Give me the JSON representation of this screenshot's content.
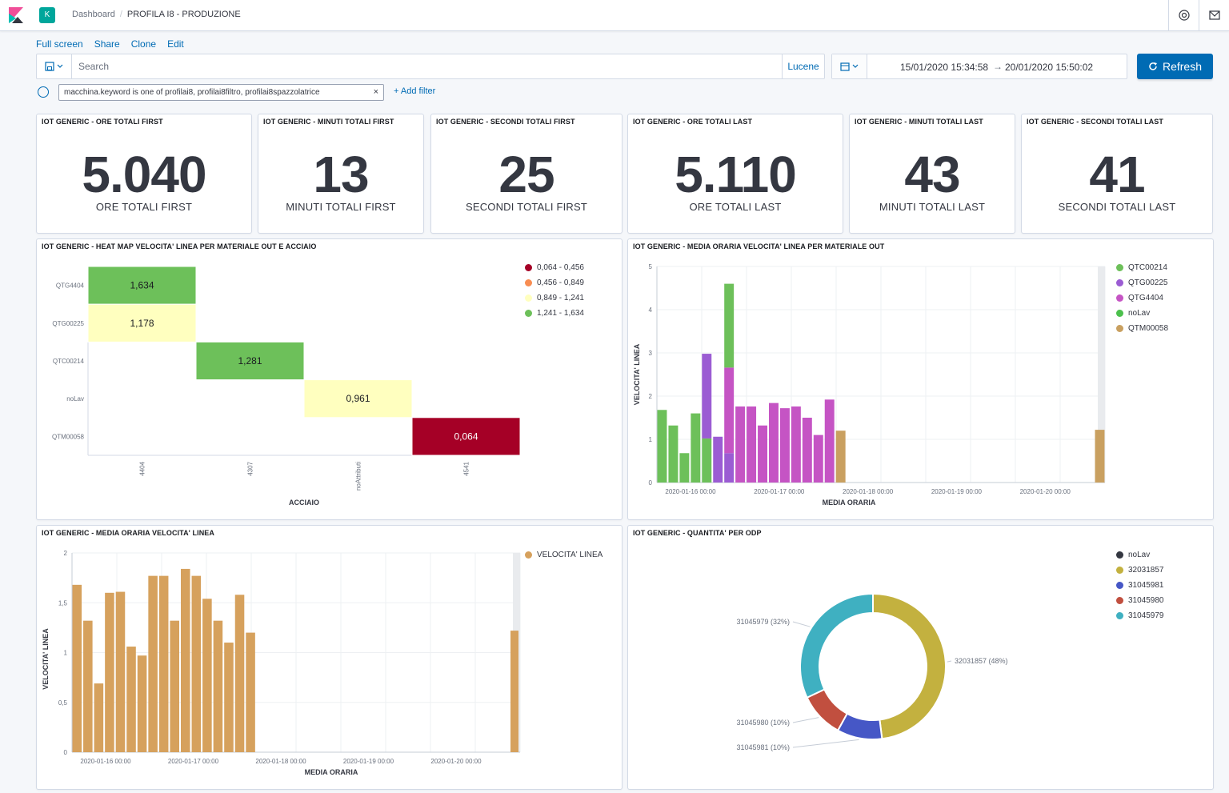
{
  "app": {
    "breadcrumb_root": "Dashboard",
    "breadcrumb_current": "PROFILA I8 - PRODUZIONE",
    "space_initial": "K"
  },
  "menu": {
    "fullscreen": "Full screen",
    "share": "Share",
    "clone": "Clone",
    "edit": "Edit"
  },
  "query": {
    "placeholder": "Search",
    "language": "Lucene"
  },
  "time": {
    "start": "15/01/2020 15:34:58",
    "arrow": "→",
    "end": "20/01/2020 15:50:02",
    "refresh_label": "Refresh"
  },
  "filters": {
    "pill": "macchina.keyword is one of profilai8, profilai8filtro, profilai8spazzolatrice",
    "remove": "×",
    "add_label": "+ Add filter"
  },
  "metrics": [
    {
      "title": "IOT GENERIC - ORE TOTALI FIRST",
      "value": "5.040",
      "label": "ORE TOTALI FIRST"
    },
    {
      "title": "IOT GENERIC - MINUTI TOTALI FIRST",
      "value": "13",
      "label": "MINUTI TOTALI FIRST"
    },
    {
      "title": "IOT GENERIC - SECONDI TOTALI FIRST",
      "value": "25",
      "label": "SECONDI TOTALI FIRST"
    },
    {
      "title": "IOT GENERIC - ORE TOTALI LAST",
      "value": "5.110",
      "label": "ORE TOTALI LAST"
    },
    {
      "title": "IOT GENERIC - MINUTI TOTALI LAST",
      "value": "43",
      "label": "MINUTI TOTALI LAST"
    },
    {
      "title": "IOT GENERIC - SECONDI TOTALI LAST",
      "value": "41",
      "label": "SECONDI TOTALI LAST"
    }
  ],
  "heatmap": {
    "title": "IOT GENERIC - HEAT MAP VELOCITA' LINEA PER MATERIALE OUT E ACCIAIO",
    "xlabel": "ACCIAIO",
    "rows": [
      "QTG4404",
      "QTG00225",
      "QTC00214",
      "noLav",
      "QTM00058"
    ],
    "cols": [
      "4404",
      "4307",
      "noAttributi",
      "4541"
    ],
    "cells": [
      {
        "row": 0,
        "col": 0,
        "label": "1,634",
        "color": "#6dc05a"
      },
      {
        "row": 1,
        "col": 0,
        "label": "1,178",
        "color": "#ffffbf"
      },
      {
        "row": 2,
        "col": 1,
        "label": "1,281",
        "color": "#6dc05a"
      },
      {
        "row": 3,
        "col": 2,
        "label": "0,961",
        "color": "#ffffbf"
      },
      {
        "row": 4,
        "col": 3,
        "label": "0,064",
        "color": "#a50026"
      }
    ],
    "legend": [
      {
        "label": "0,064 - 0,456",
        "color": "#a50026"
      },
      {
        "label": "0,456 - 0,849",
        "color": "#f88d52"
      },
      {
        "label": "0,849 - 1,241",
        "color": "#ffffbf"
      },
      {
        "label": "1,241 - 1,634",
        "color": "#6dc05a"
      }
    ]
  },
  "chart_data": [
    {
      "type": "bar",
      "title": "IOT GENERIC - MEDIA ORARIA VELOCITA' LINEA PER MATERIALE OUT",
      "xlabel": "MEDIA ORARIA",
      "ylabel": "VELOCITA' LINEA",
      "ylim": [
        0,
        5
      ],
      "yticks": [
        "0",
        "1",
        "2",
        "3",
        "4",
        "5"
      ],
      "xticks": [
        "2020-01-16 00:00",
        "2020-01-17 00:00",
        "2020-01-18 00:00",
        "2020-01-19 00:00",
        "2020-01-20 00:00"
      ],
      "series": [
        {
          "name": "QTC00214",
          "color": "#54b399"
        },
        {
          "name": "QTG00225",
          "color": "#6092c0"
        },
        {
          "name": "QTG4404",
          "color": "#d36086"
        },
        {
          "name": "noLav",
          "color": "#9170b8"
        },
        {
          "name": "QTM00058",
          "color": "#ca8eae"
        }
      ],
      "legend": [
        {
          "label": "QTC00214",
          "color": "#6dc05a"
        },
        {
          "label": "QTG00225",
          "color": "#9b5cd3"
        },
        {
          "label": "QTG4404",
          "color": "#c554c4"
        },
        {
          "label": "noLav",
          "color": "#4cc04d"
        },
        {
          "label": "QTM00058",
          "color": "#c9a060"
        }
      ],
      "bars": [
        {
          "x": 0,
          "stack": [
            [
              1.68,
              "#6dc05a"
            ]
          ]
        },
        {
          "x": 1,
          "stack": [
            [
              1.32,
              "#6dc05a"
            ]
          ]
        },
        {
          "x": 2,
          "stack": [
            [
              0.68,
              "#6dc05a"
            ]
          ]
        },
        {
          "x": 3,
          "stack": [
            [
              1.6,
              "#6dc05a"
            ]
          ]
        },
        {
          "x": 4,
          "stack": [
            [
              1.02,
              "#6dc05a"
            ],
            [
              1.96,
              "#9b5cd3"
            ]
          ]
        },
        {
          "x": 5,
          "stack": [
            [
              1.06,
              "#9b5cd3"
            ]
          ]
        },
        {
          "x": 6,
          "stack": [
            [
              0.68,
              "#9b5cd3"
            ],
            [
              1.98,
              "#c554c4"
            ],
            [
              1.94,
              "#6dc05a"
            ]
          ]
        },
        {
          "x": 7,
          "stack": [
            [
              1.76,
              "#c554c4"
            ]
          ]
        },
        {
          "x": 8,
          "stack": [
            [
              1.76,
              "#c554c4"
            ]
          ]
        },
        {
          "x": 9,
          "stack": [
            [
              1.32,
              "#c554c4"
            ]
          ]
        },
        {
          "x": 10,
          "stack": [
            [
              1.84,
              "#c554c4"
            ]
          ]
        },
        {
          "x": 11,
          "stack": [
            [
              1.72,
              "#c554c4"
            ]
          ]
        },
        {
          "x": 12,
          "stack": [
            [
              1.76,
              "#c554c4"
            ]
          ]
        },
        {
          "x": 13,
          "stack": [
            [
              1.5,
              "#c554c4"
            ]
          ]
        },
        {
          "x": 14,
          "stack": [
            [
              1.1,
              "#c554c4"
            ]
          ]
        },
        {
          "x": 15,
          "stack": [
            [
              1.92,
              "#c554c4"
            ]
          ]
        },
        {
          "x": 16,
          "stack": [
            [
              1.2,
              "#c9a060"
            ]
          ]
        },
        {
          "x": 40,
          "stack": [
            [
              1.22,
              "#c9a060"
            ]
          ]
        }
      ]
    },
    {
      "type": "bar",
      "title": "IOT GENERIC - MEDIA ORARIA VELOCITA' LINEA",
      "xlabel": "MEDIA ORARIA",
      "ylabel": "VELOCITA' LINEA",
      "ylim": [
        0,
        2
      ],
      "yticks": [
        "0",
        "0,5",
        "1",
        "1,5",
        "2"
      ],
      "xticks": [
        "2020-01-16 00:00",
        "2020-01-17 00:00",
        "2020-01-18 00:00",
        "2020-01-19 00:00",
        "2020-01-20 00:00"
      ],
      "legend": [
        {
          "label": "VELOCITA' LINEA",
          "color": "#d6a15d"
        }
      ],
      "series": [
        {
          "name": "VELOCITA' LINEA",
          "color": "#d6a15d"
        }
      ],
      "values": [
        1.68,
        1.32,
        0.69,
        1.6,
        1.61,
        1.06,
        0.97,
        1.77,
        1.77,
        1.32,
        1.84,
        1.77,
        1.54,
        1.32,
        1.1,
        1.58,
        1.2
      ],
      "last_value": 1.22
    },
    {
      "type": "pie",
      "title": "IOT GENERIC - QUANTITA' PER ODP",
      "slices": [
        {
          "name": "32031857",
          "label": "32031857 (48%)",
          "value": 48,
          "color": "#c3b13f"
        },
        {
          "name": "31045981",
          "label": "31045981 (10%)",
          "value": 10,
          "color": "#4657c6"
        },
        {
          "name": "31045980",
          "label": "31045980 (10%)",
          "value": 10,
          "color": "#c14f3f"
        },
        {
          "name": "31045979",
          "label": "31045979 (32%)",
          "value": 32,
          "color": "#3fb0c1"
        }
      ],
      "legend": [
        {
          "label": "noLav",
          "color": "#343741"
        },
        {
          "label": "32031857",
          "color": "#c3b13f"
        },
        {
          "label": "31045981",
          "color": "#4657c6"
        },
        {
          "label": "31045980",
          "color": "#c14f3f"
        },
        {
          "label": "31045979",
          "color": "#3fb0c1"
        }
      ]
    }
  ]
}
